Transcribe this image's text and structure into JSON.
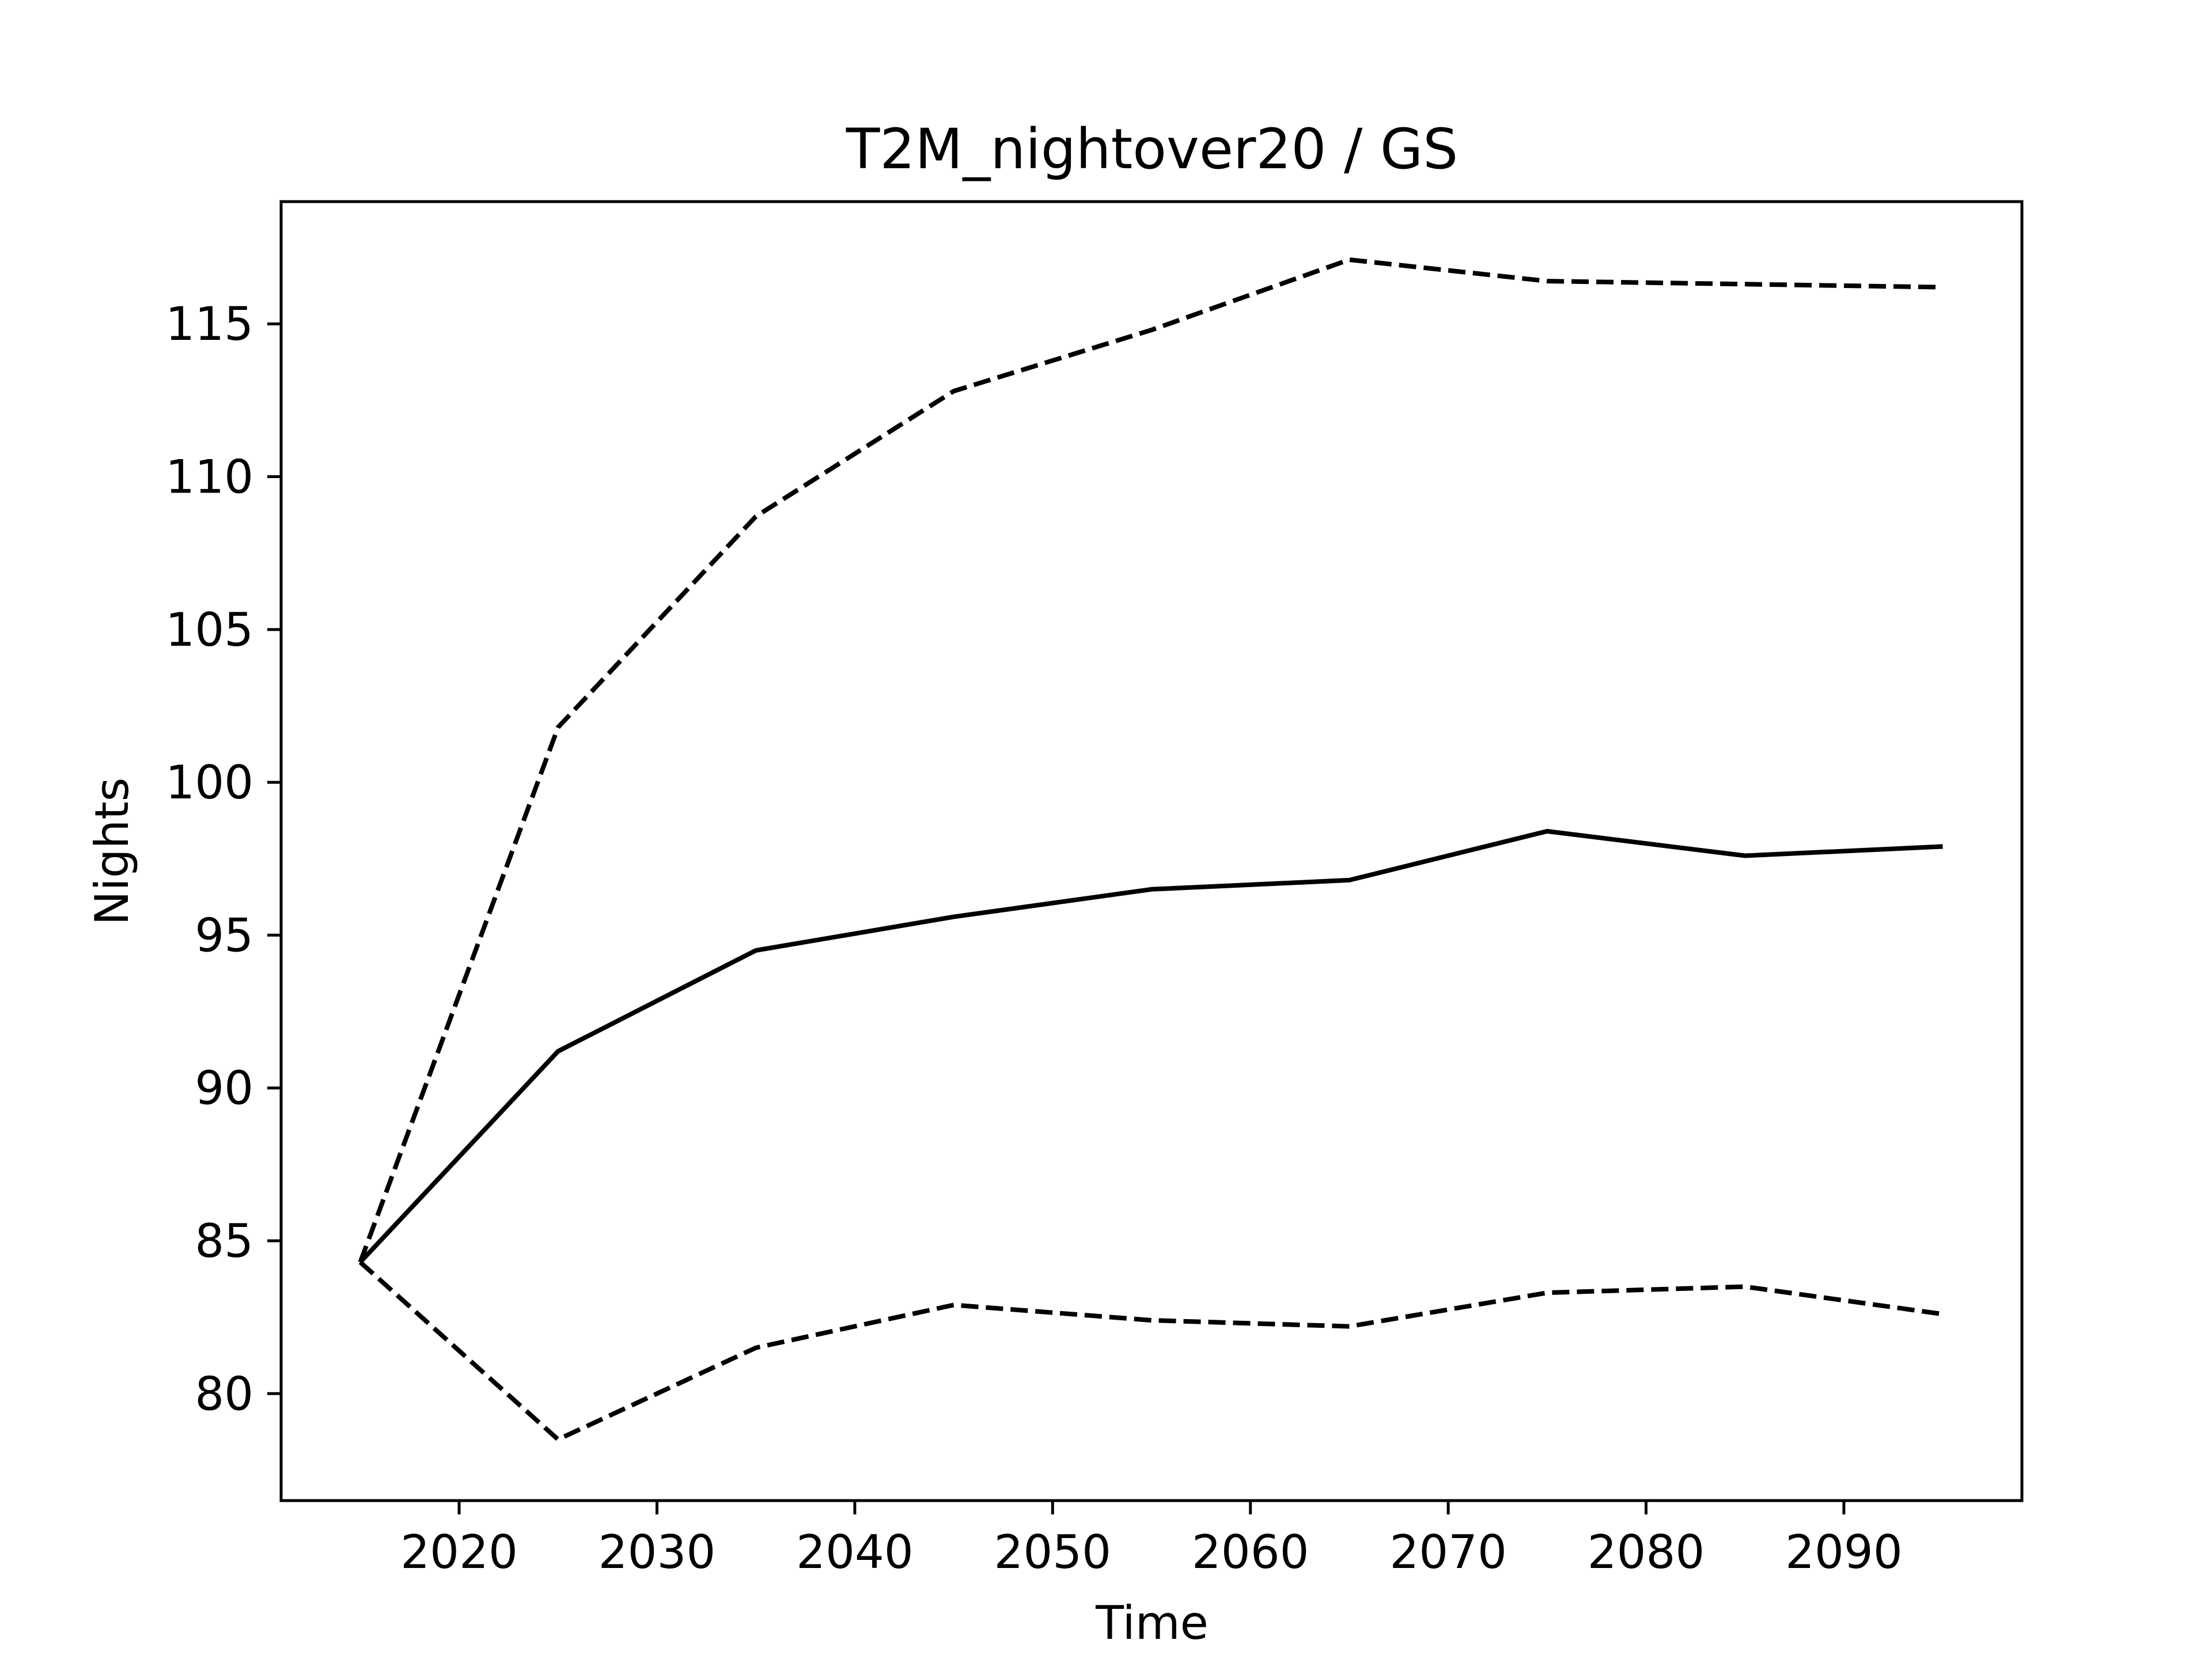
{
  "chart_data": {
    "type": "line",
    "title": "T2M_nightover20 / GS",
    "xlabel": "Time",
    "ylabel": "Nights",
    "x": [
      2015,
      2025,
      2035,
      2045,
      2055,
      2065,
      2075,
      2085,
      2095
    ],
    "series": [
      {
        "style": "solid",
        "color": "#000000",
        "values": [
          84.3,
          91.2,
          94.5,
          95.6,
          96.5,
          96.8,
          98.4,
          97.6,
          97.9
        ]
      },
      {
        "style": "dashed",
        "color": "#000000",
        "values": [
          84.3,
          101.8,
          108.7,
          112.8,
          114.8,
          117.1,
          116.4,
          116.3,
          116.2
        ]
      },
      {
        "style": "dashed",
        "color": "#000000",
        "values": [
          84.3,
          78.5,
          81.5,
          82.9,
          82.4,
          82.2,
          83.3,
          83.5,
          82.6
        ]
      }
    ],
    "xlim": [
      2011,
      2099
    ],
    "ylim": [
      76.5,
      119
    ],
    "xticks": [
      2020,
      2030,
      2040,
      2050,
      2060,
      2070,
      2080,
      2090
    ],
    "yticks": [
      80,
      85,
      90,
      95,
      100,
      105,
      110,
      115
    ],
    "grid": false,
    "legend": "none"
  }
}
